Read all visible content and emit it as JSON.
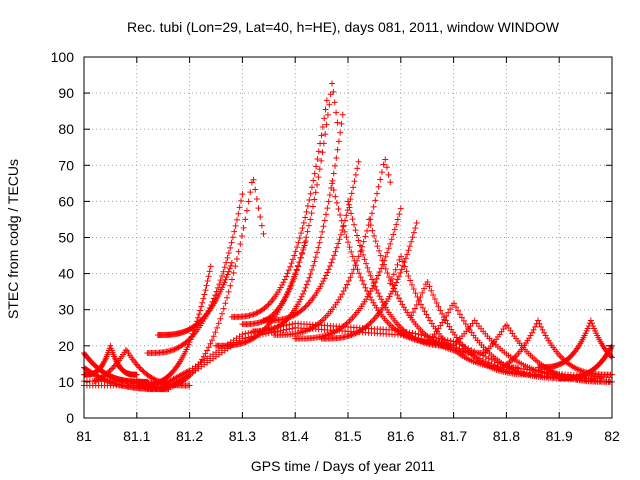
{
  "chart_data": {
    "type": "scatter",
    "title": "Rec. tubi (Lon=29, Lat=40, h=HE), days 081, 2011, window WINDOW",
    "xlabel": "GPS time / Days of year 2011",
    "ylabel": "STEC from codg / TECUs",
    "xlim": [
      81,
      82
    ],
    "ylim": [
      0,
      100
    ],
    "xticks": [
      "81",
      "81.1",
      "81.2",
      "81.3",
      "81.4",
      "81.5",
      "81.6",
      "81.7",
      "81.8",
      "81.9",
      "82"
    ],
    "yticks": [
      "0",
      "10",
      "20",
      "30",
      "40",
      "50",
      "60",
      "70",
      "80",
      "90",
      "100"
    ],
    "grid": true,
    "marker": "+",
    "series_color": "#ff0000",
    "arcs": [
      {
        "start": 81.0,
        "end": 81.12,
        "peak_x": 81.0,
        "peak_y": 18,
        "min_y": 10
      },
      {
        "start": 81.0,
        "end": 81.16,
        "peak_x": 81.0,
        "peak_y": 14,
        "min_y": 8
      },
      {
        "start": 81.0,
        "end": 81.1,
        "peak_x": 81.05,
        "peak_y": 20,
        "min_y": 12
      },
      {
        "start": 81.02,
        "end": 81.2,
        "peak_x": 81.08,
        "peak_y": 19,
        "min_y": 9
      },
      {
        "start": 81.1,
        "end": 81.24,
        "peak_x": 81.24,
        "peak_y": 42,
        "min_y": 9
      },
      {
        "start": 81.12,
        "end": 81.3,
        "peak_x": 81.3,
        "peak_y": 62,
        "min_y": 18
      },
      {
        "start": 81.12,
        "end": 81.34,
        "peak_x": 81.32,
        "peak_y": 67,
        "min_y": 8
      },
      {
        "start": 81.14,
        "end": 81.28,
        "peak_x": 81.28,
        "peak_y": 43,
        "min_y": 23
      },
      {
        "start": 81.25,
        "end": 81.42,
        "peak_x": 81.42,
        "peak_y": 49,
        "min_y": 20
      },
      {
        "start": 81.28,
        "end": 81.46,
        "peak_x": 81.46,
        "peak_y": 88,
        "min_y": 28
      },
      {
        "start": 81.3,
        "end": 81.48,
        "peak_x": 81.47,
        "peak_y": 93,
        "min_y": 26
      },
      {
        "start": 81.32,
        "end": 81.49,
        "peak_x": 81.49,
        "peak_y": 84,
        "min_y": 24
      },
      {
        "start": 81.34,
        "end": 81.52,
        "peak_x": 81.52,
        "peak_y": 71,
        "min_y": 27
      },
      {
        "start": 81.36,
        "end": 81.58,
        "peak_x": 81.57,
        "peak_y": 72,
        "min_y": 23
      },
      {
        "start": 81.4,
        "end": 81.6,
        "peak_x": 81.6,
        "peak_y": 58,
        "min_y": 22
      },
      {
        "start": 81.45,
        "end": 81.63,
        "peak_x": 81.63,
        "peak_y": 54,
        "min_y": 22
      },
      {
        "start": 81.47,
        "end": 81.68,
        "peak_x": 81.47,
        "peak_y": 65,
        "min_y": 21
      },
      {
        "start": 81.5,
        "end": 81.7,
        "peak_x": 81.5,
        "peak_y": 60,
        "min_y": 20
      },
      {
        "start": 81.54,
        "end": 81.76,
        "peak_x": 81.54,
        "peak_y": 55,
        "min_y": 18
      },
      {
        "start": 81.58,
        "end": 81.82,
        "peak_x": 81.6,
        "peak_y": 45,
        "min_y": 14
      },
      {
        "start": 81.62,
        "end": 81.86,
        "peak_x": 81.65,
        "peak_y": 38,
        "min_y": 12
      },
      {
        "start": 81.66,
        "end": 81.92,
        "peak_x": 81.7,
        "peak_y": 32,
        "min_y": 11
      },
      {
        "start": 81.7,
        "end": 81.98,
        "peak_x": 81.74,
        "peak_y": 27,
        "min_y": 11
      },
      {
        "start": 81.76,
        "end": 82.0,
        "peak_x": 81.8,
        "peak_y": 26,
        "min_y": 10
      },
      {
        "start": 81.8,
        "end": 82.0,
        "peak_x": 81.86,
        "peak_y": 27,
        "min_y": 12
      },
      {
        "start": 81.86,
        "end": 82.0,
        "peak_x": 81.96,
        "peak_y": 27,
        "min_y": 14
      },
      {
        "start": 81.9,
        "end": 82.0,
        "peak_x": 82.0,
        "peak_y": 20,
        "min_y": 11
      }
    ],
    "background_band": {
      "xs": [
        81.0,
        81.1,
        81.15,
        81.2,
        81.3,
        81.4,
        81.5,
        81.6,
        81.7,
        81.8,
        81.9,
        82.0
      ],
      "ys": [
        9,
        9,
        8,
        12,
        22,
        25,
        24,
        23,
        20,
        13,
        11,
        10
      ]
    }
  }
}
